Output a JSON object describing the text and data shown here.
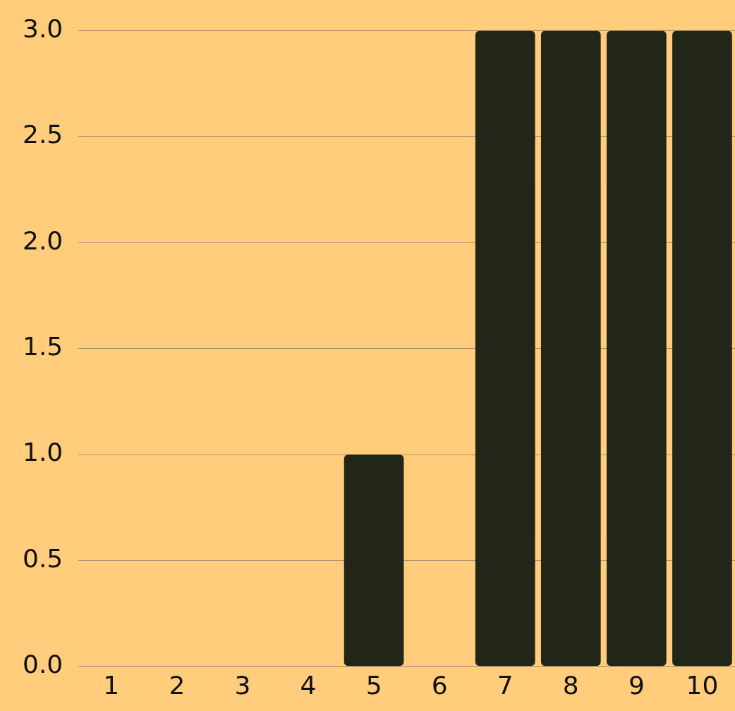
{
  "chart_data": {
    "type": "bar",
    "categories": [
      "1",
      "2",
      "3",
      "4",
      "5",
      "6",
      "7",
      "8",
      "9",
      "10"
    ],
    "values": [
      0,
      0,
      0,
      0,
      1,
      0,
      3,
      3,
      3,
      3
    ],
    "color": "#212619",
    "ylim": [
      0,
      3
    ],
    "yticks": [
      {
        "value": 0,
        "label": "0.0"
      },
      {
        "value": 0.5,
        "label": "0.5"
      },
      {
        "value": 1,
        "label": "1.0"
      },
      {
        "value": 1.5,
        "label": "1.5"
      },
      {
        "value": 2,
        "label": "2.0"
      },
      {
        "value": 2.5,
        "label": "2.5"
      },
      {
        "value": 3,
        "label": "3.0"
      }
    ],
    "grid": "y"
  }
}
